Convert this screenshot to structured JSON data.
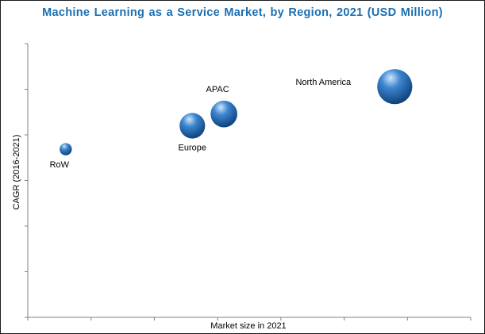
{
  "chart_data": {
    "type": "scatter",
    "title": "Machine Learning as a Service Market, by Region, 2021 (USD Million)",
    "xlabel": "Market size in 2021",
    "ylabel": "CAGR (2016-2021)",
    "grid": false,
    "legend": "none",
    "series": [
      {
        "points": [
          {
            "label": "RoW",
            "x": 0.6,
            "y": 4.3,
            "size": 0.22
          },
          {
            "label": "Europe",
            "x": 2.6,
            "y": 4.9,
            "size": 0.46
          },
          {
            "label": "APAC",
            "x": 3.1,
            "y": 5.2,
            "size": 0.48
          },
          {
            "label": "North America",
            "x": 5.8,
            "y": 5.9,
            "size": 0.63
          }
        ]
      }
    ],
    "xlim": [
      0,
      7
    ],
    "ylim": [
      0,
      7
    ]
  },
  "colors": {
    "title": "#1a6fb2",
    "bubble_highlight": "#cfe6fb",
    "bubble_mid": "#3d86cf",
    "bubble_dark": "#0d3f78",
    "axis": "#808080"
  }
}
